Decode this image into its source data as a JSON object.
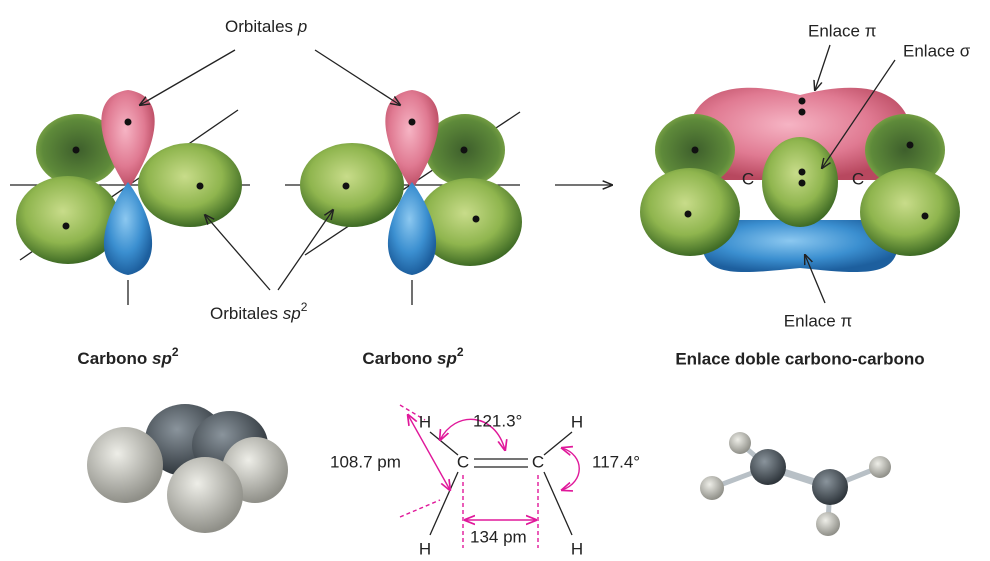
{
  "orbitales_p": {
    "text": "Orbitales",
    "symbol": "p"
  },
  "orbitales_sp2": {
    "text": "Orbitales",
    "symbol": "sp",
    "superscript": "2"
  },
  "bond_labels": {
    "pi_top": "Enlace π",
    "sigma": "Enlace σ",
    "carbon_left": "C",
    "carbon_right": "C",
    "pi_bottom": "Enlace π"
  },
  "captions": [
    {
      "text": "Carbono",
      "symbol": "sp",
      "superscript": "2"
    },
    {
      "text": "Carbono",
      "symbol": "sp",
      "superscript": "2"
    },
    {
      "text": "Enlace doble carbono-carbono"
    }
  ],
  "ethylene": {
    "atoms": [
      "H",
      "C",
      "H",
      "H",
      "C",
      "H"
    ],
    "angle_hcc": "121.3°",
    "bond_ch": "108.7 pm",
    "angle_hch": "117.4°",
    "bond_cc": "134 pm"
  }
}
